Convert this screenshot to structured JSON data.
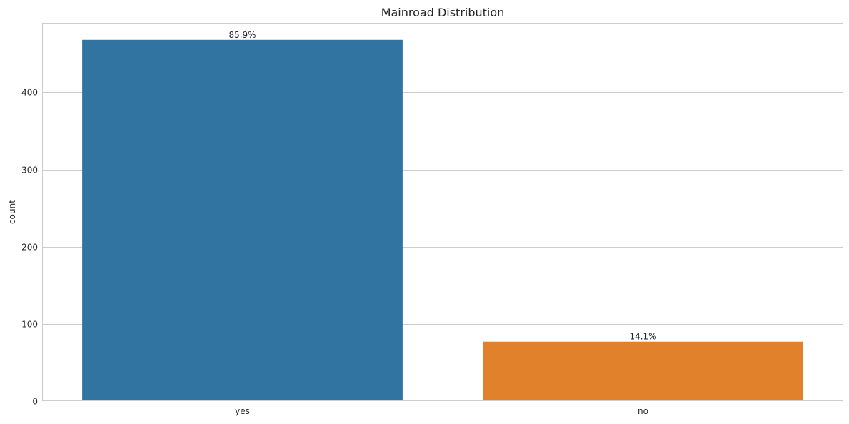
{
  "chart_data": {
    "type": "bar",
    "title": "Mainroad Distribution",
    "xlabel": "",
    "ylabel": "count",
    "categories": [
      "yes",
      "no"
    ],
    "values": [
      468,
      77
    ],
    "data_labels": [
      "85.9%",
      "14.1%"
    ],
    "bar_colors": [
      "#3274a1",
      "#e1812c"
    ],
    "ylim": [
      0,
      490
    ],
    "yticks": [
      0,
      100,
      200,
      300,
      400
    ],
    "grid": "horizontal",
    "legend": "none"
  }
}
